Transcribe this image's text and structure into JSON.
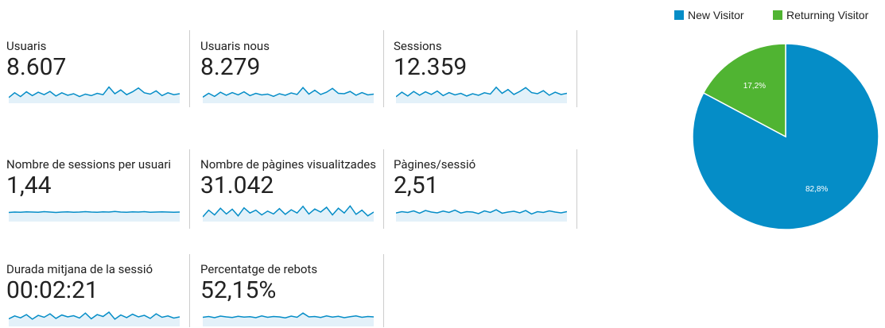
{
  "metrics": [
    {
      "label": "Usuaris",
      "value": "8.607",
      "sparkline": [
        30,
        55,
        35,
        60,
        40,
        58,
        45,
        62,
        38,
        55,
        42,
        50,
        35,
        48,
        40,
        52,
        45,
        85,
        50,
        70,
        45,
        60,
        80,
        55,
        48,
        65,
        40,
        55,
        45,
        50
      ]
    },
    {
      "label": "Usuaris nous",
      "value": "8.279",
      "sparkline": [
        32,
        52,
        36,
        58,
        42,
        56,
        44,
        60,
        40,
        52,
        44,
        48,
        36,
        50,
        42,
        54,
        46,
        82,
        48,
        68,
        46,
        58,
        78,
        52,
        50,
        62,
        42,
        56,
        44,
        48
      ]
    },
    {
      "label": "Sessions",
      "value": "12.359",
      "sparkline": [
        34,
        58,
        38,
        62,
        42,
        60,
        46,
        64,
        40,
        56,
        44,
        52,
        38,
        50,
        42,
        55,
        48,
        84,
        52,
        72,
        46,
        62,
        82,
        56,
        50,
        66,
        42,
        58,
        46,
        52
      ]
    },
    {
      "label": "Nombre de sessions per usuari",
      "value": "1,44",
      "sparkline": [
        48,
        50,
        49,
        51,
        50,
        49,
        52,
        50,
        48,
        50,
        51,
        49,
        50,
        52,
        50,
        49,
        51,
        50,
        53,
        50,
        49,
        51,
        50,
        52,
        49,
        50,
        51,
        50,
        49,
        50
      ]
    },
    {
      "label": "Nombre de pàgines visualitzades",
      "value": "31.042",
      "sparkline": [
        25,
        60,
        35,
        70,
        40,
        65,
        30,
        72,
        45,
        60,
        35,
        55,
        40,
        68,
        38,
        62,
        45,
        80,
        40,
        66,
        50,
        75,
        35,
        70,
        45,
        82,
        38,
        60,
        30,
        50
      ]
    },
    {
      "label": "Pàgines/sessió",
      "value": "2,51",
      "sparkline": [
        45,
        52,
        48,
        56,
        44,
        58,
        50,
        46,
        55,
        48,
        60,
        45,
        52,
        50,
        42,
        56,
        48,
        62,
        44,
        50,
        54,
        46,
        58,
        40,
        52,
        48,
        56,
        50,
        46,
        52
      ]
    },
    {
      "label": "Durada mitjana de la sessió",
      "value": "00:02:21",
      "sparkline": [
        40,
        55,
        45,
        62,
        38,
        58,
        48,
        66,
        42,
        60,
        50,
        56,
        44,
        70,
        40,
        62,
        52,
        75,
        38,
        60,
        46,
        64,
        50,
        58,
        42,
        66,
        48,
        55,
        44,
        50
      ]
    },
    {
      "label": "Percentatge de rebots",
      "value": "52,15%",
      "sparkline": [
        48,
        52,
        46,
        54,
        50,
        47,
        53,
        49,
        51,
        46,
        55,
        48,
        52,
        50,
        45,
        54,
        48,
        70,
        50,
        52,
        47,
        55,
        49,
        53,
        46,
        51,
        55,
        48,
        52,
        50
      ]
    }
  ],
  "chart_data": {
    "type": "pie",
    "categories": [
      "New Visitor",
      "Returning Visitor"
    ],
    "values": [
      82.8,
      17.2
    ],
    "value_labels": [
      "82,8%",
      "17,2%"
    ],
    "colors": [
      "#058dc7",
      "#50b432"
    ]
  }
}
